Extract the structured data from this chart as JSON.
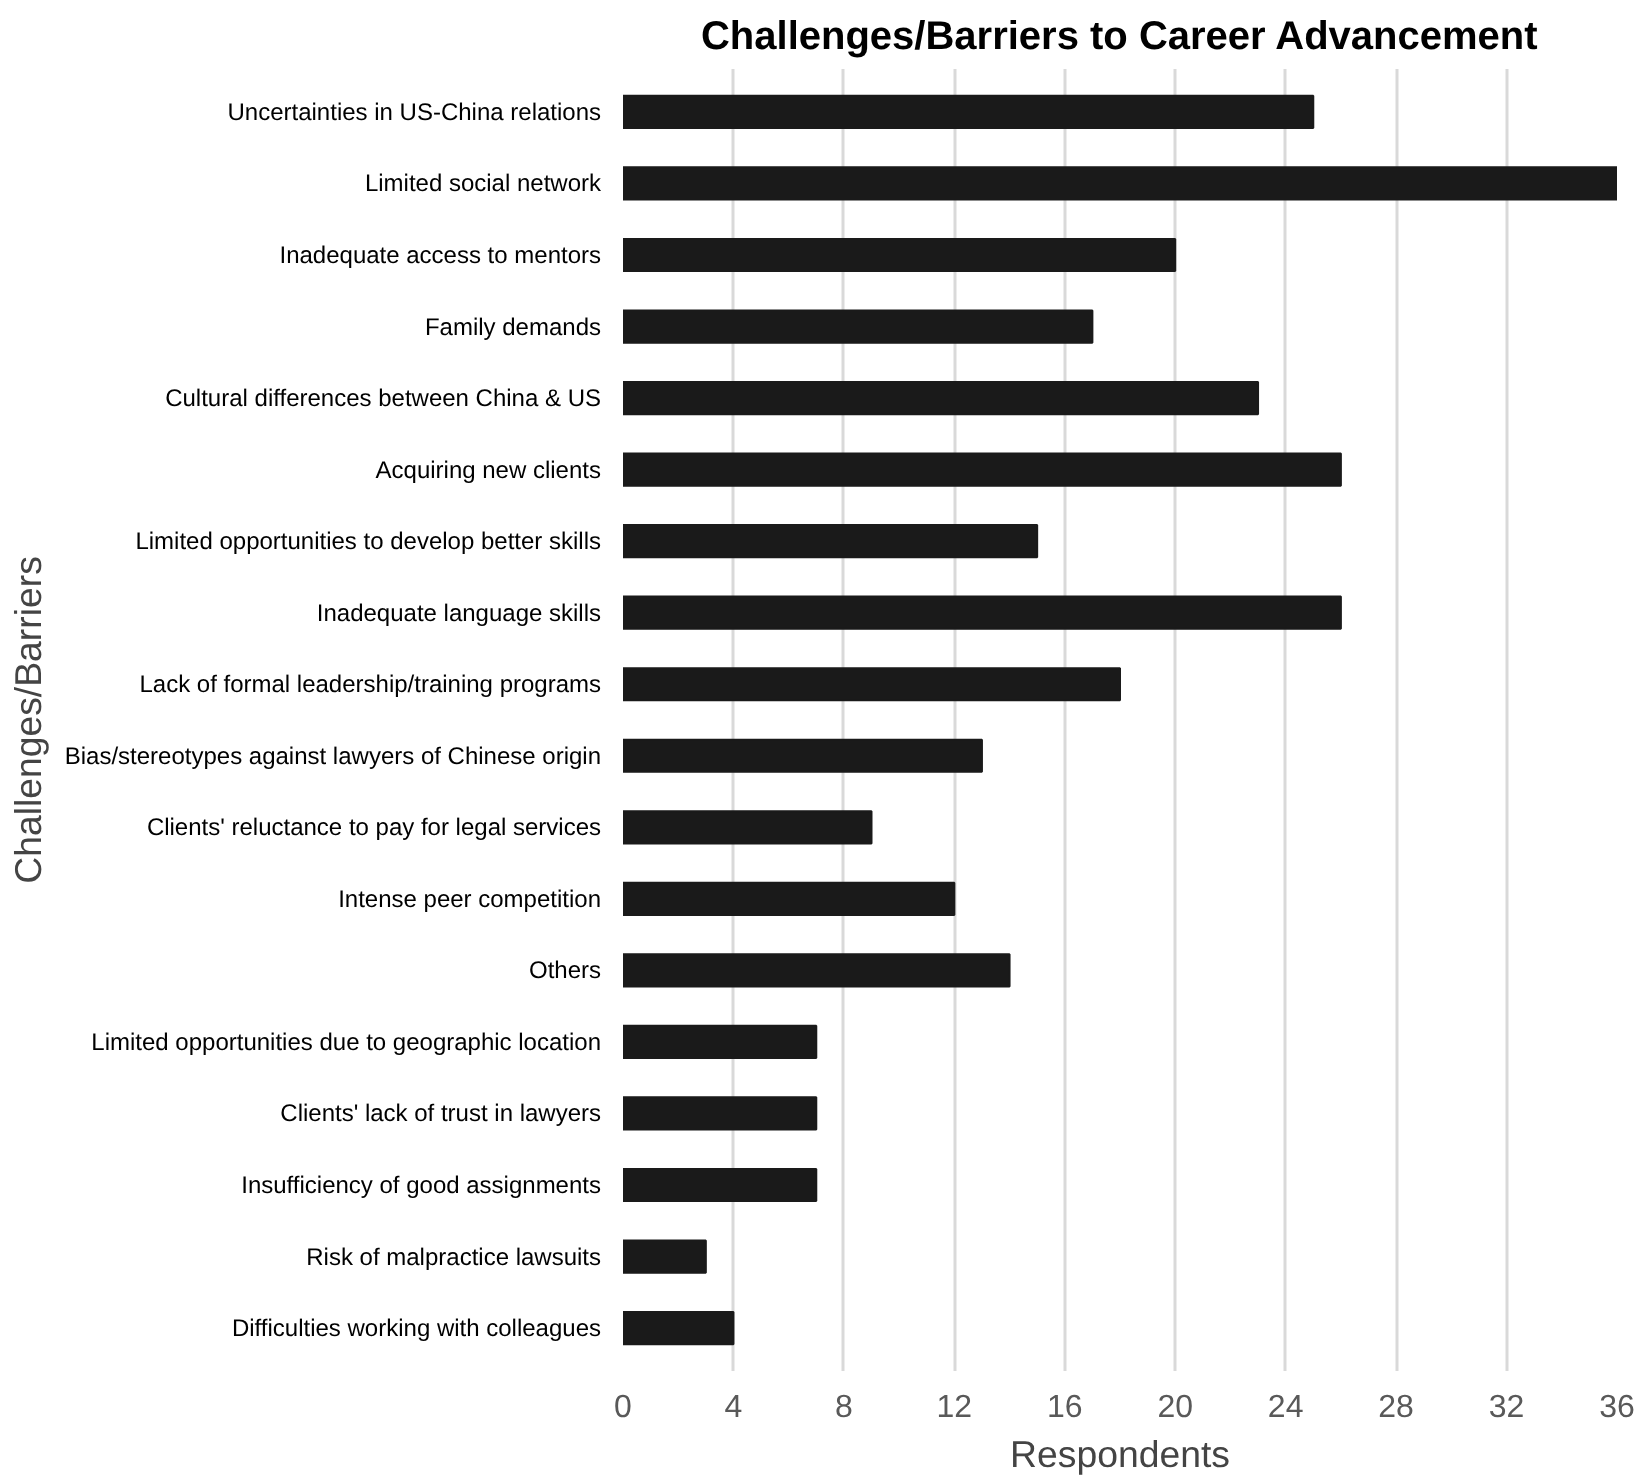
{
  "chart_data": {
    "type": "bar",
    "orientation": "horizontal",
    "title": "Challenges/Barriers to Career Advancement",
    "xlabel": "Respondents",
    "ylabel": "Challenges/Barriers",
    "categories": [
      "Uncertainties in US-China relations",
      "Limited social network",
      "Inadequate access to mentors",
      "Family demands",
      "Cultural differences between China & US",
      "Acquiring new clients",
      "Limited opportunities to develop better skills",
      "Inadequate language skills",
      "Lack of formal leadership/training programs",
      "Bias/stereotypes against lawyers of Chinese origin",
      "Clients' reluctance to pay for legal services",
      "Intense peer competition",
      "Others",
      "Limited opportunities due to geographic location",
      "Clients' lack of trust in lawyers",
      "Insufficiency of good assignments",
      "Risk of malpractice lawsuits",
      "Difficulties working with colleagues"
    ],
    "values": [
      25,
      36,
      20,
      17,
      23,
      26,
      15,
      26,
      18,
      13,
      9,
      12,
      14,
      7,
      7,
      7,
      3,
      4
    ],
    "color": "#1a1a1a",
    "xlim": [
      0,
      36
    ],
    "xticks": [
      0,
      4,
      8,
      12,
      16,
      20,
      24,
      28,
      32,
      36
    ],
    "grid": "x"
  }
}
